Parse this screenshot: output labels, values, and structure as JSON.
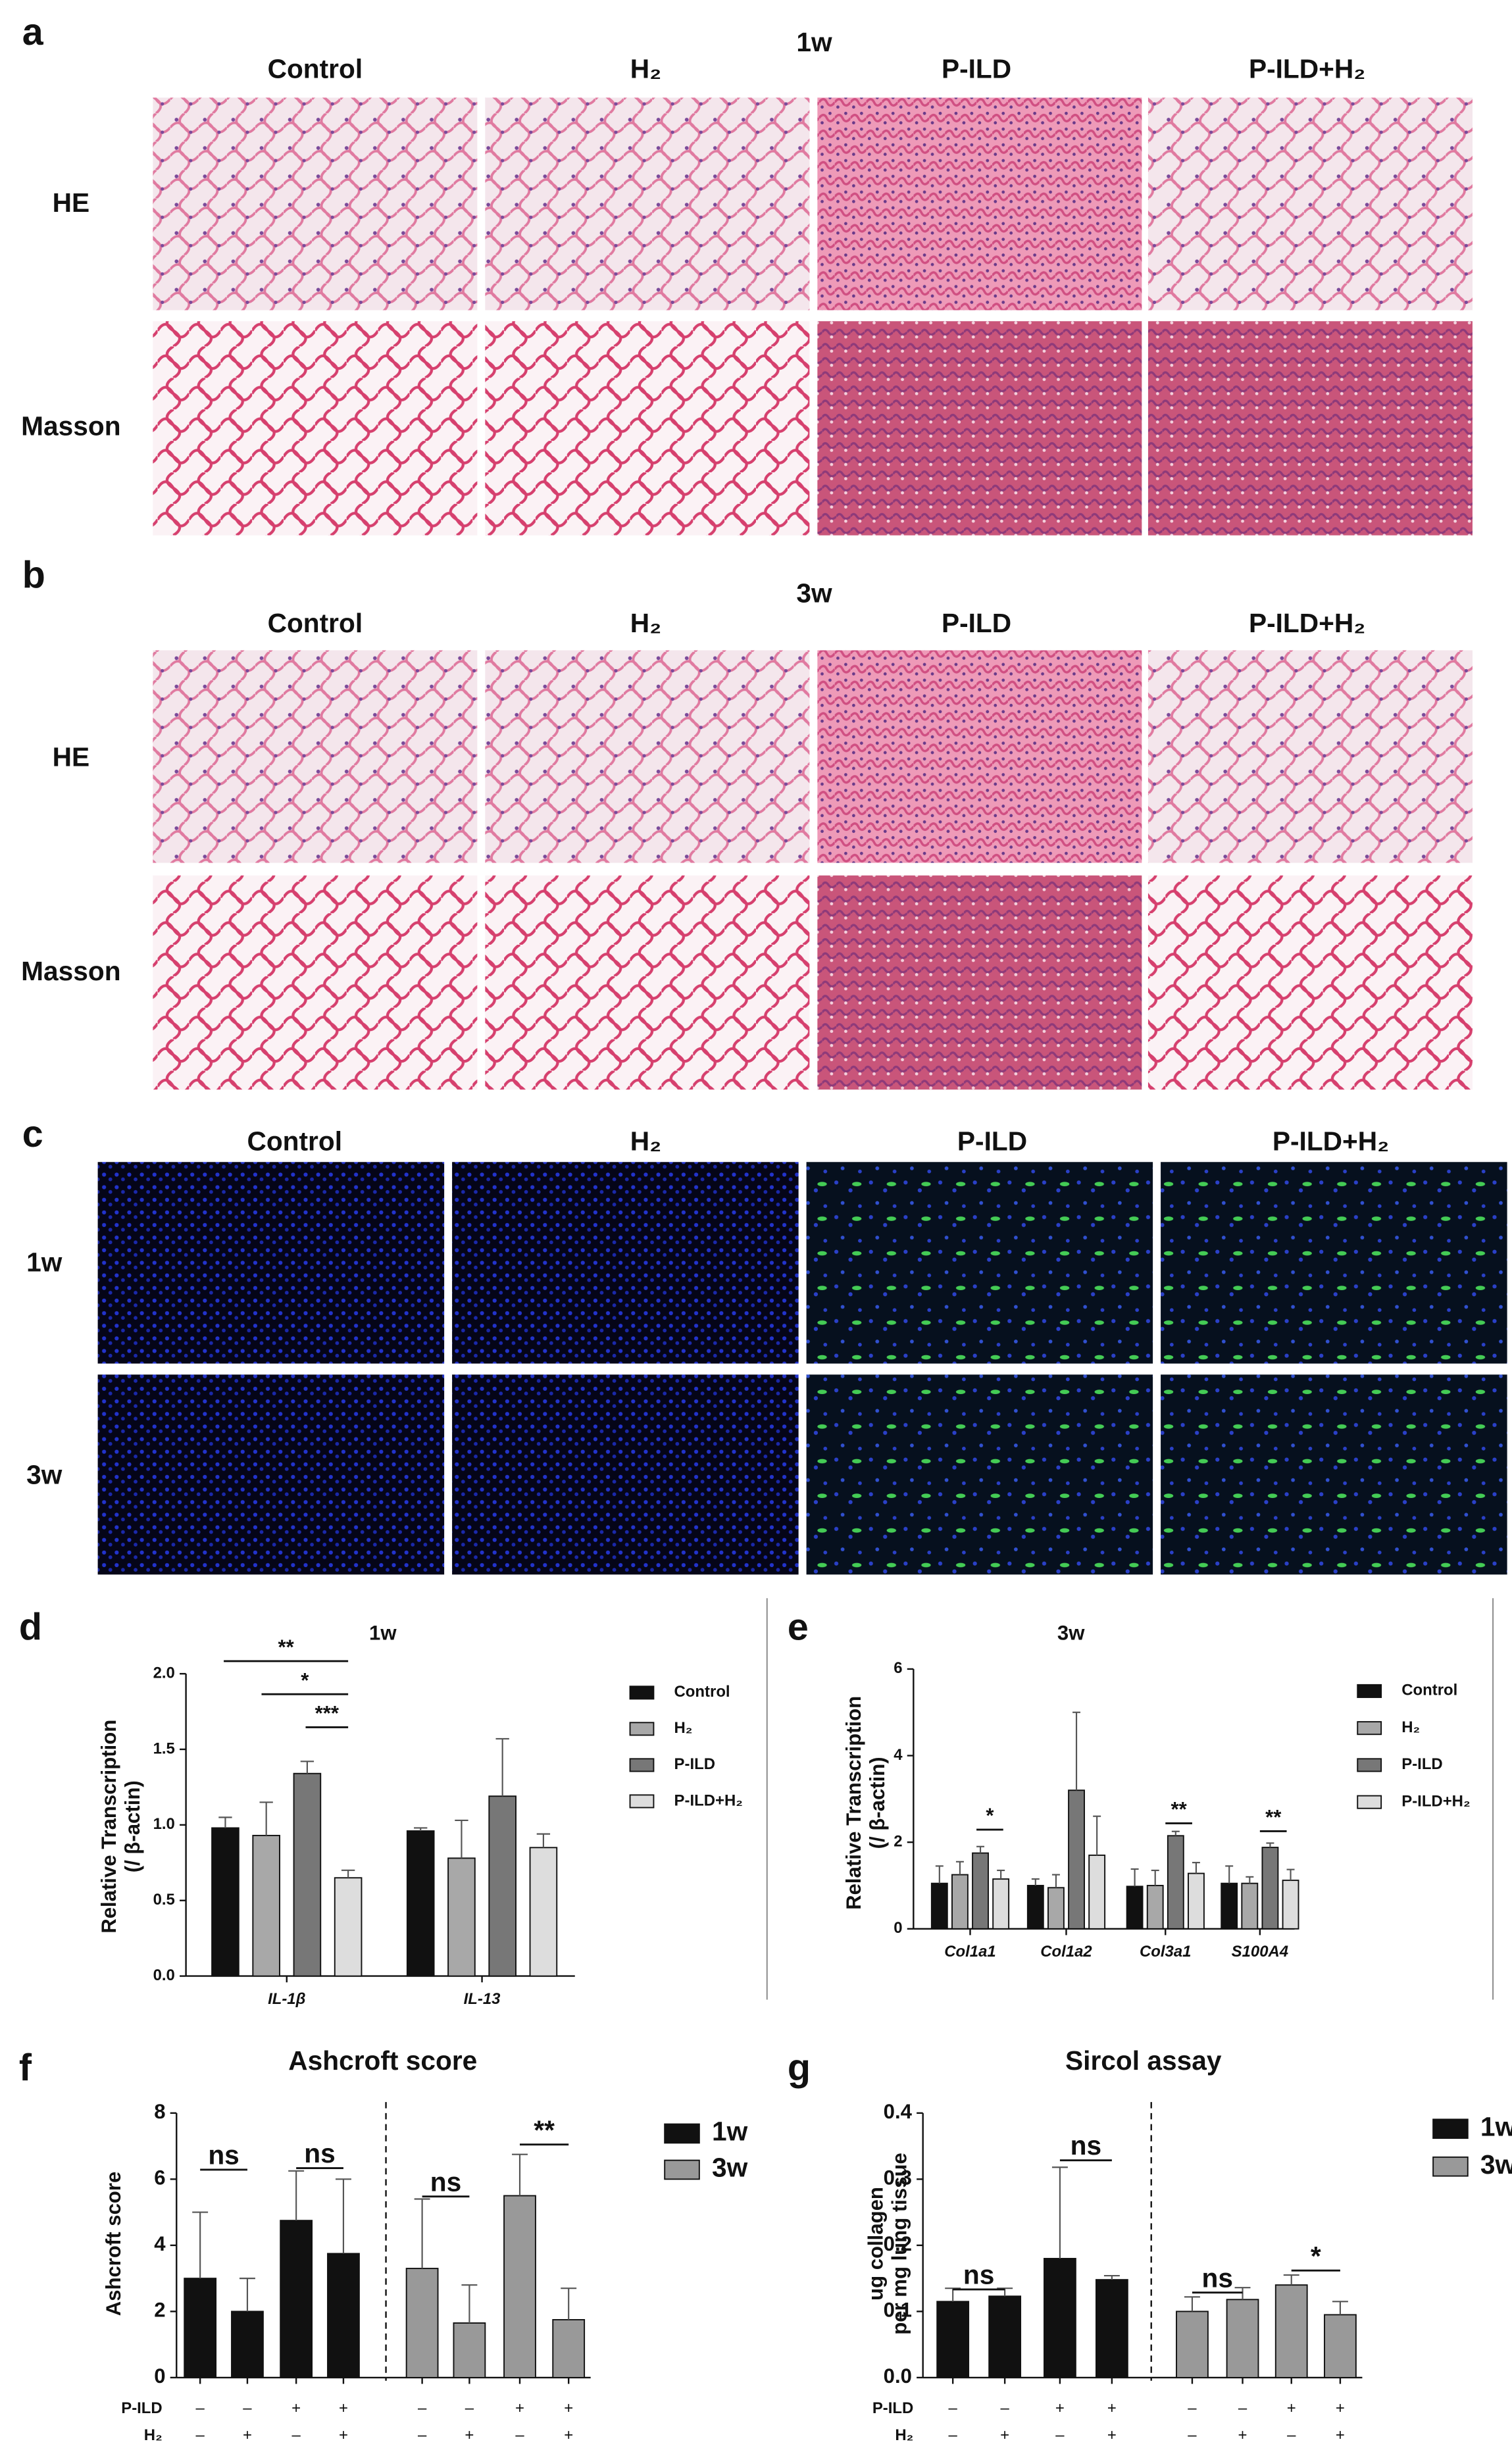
{
  "figure": {
    "panels": [
      {
        "label": "a",
        "title": "1w",
        "columns": [
          "Control",
          "H₂",
          "P-ILD",
          "P-ILD+H₂"
        ],
        "rows": [
          "HE",
          "Masson"
        ]
      },
      {
        "label": "b",
        "title": "3w",
        "columns": [
          "Control",
          "H₂",
          "P-ILD",
          "P-ILD+H₂"
        ],
        "rows": [
          "HE",
          "Masson"
        ]
      },
      {
        "label": "c",
        "columns": [
          "Control",
          "H₂",
          "P-ILD",
          "P-ILD+H₂"
        ],
        "rows": [
          "1w",
          "3w"
        ]
      }
    ]
  },
  "chart_data": [
    {
      "type": "bar",
      "label": "d",
      "title": "1w",
      "ylabel": [
        "Relative Transcription",
        "(/ β-actin)"
      ],
      "categories": [
        "IL-1β",
        "IL-13"
      ],
      "series": [
        {
          "name": "Control",
          "color": "#111111",
          "values": [
            0.98,
            0.96
          ],
          "errors": [
            0.07,
            0.02
          ]
        },
        {
          "name": "H₂",
          "color": "#a8a8a8",
          "values": [
            0.93,
            0.78
          ],
          "errors": [
            0.22,
            0.25
          ]
        },
        {
          "name": "P-ILD",
          "color": "#777777",
          "values": [
            1.34,
            1.19
          ],
          "errors": [
            0.08,
            0.38
          ]
        },
        {
          "name": "P-ILD+H₂",
          "color": "#dddddd",
          "values": [
            0.65,
            0.85
          ],
          "errors": [
            0.05,
            0.09
          ]
        }
      ],
      "ylim": [
        0,
        2
      ],
      "yticks": [
        {
          "value": 0,
          "label": "0.0"
        },
        0.5,
        {
          "value": 1,
          "label": "1.0"
        },
        1.5,
        {
          "value": 2,
          "label": "2.0"
        }
      ],
      "annotations": [
        "**",
        "*",
        "***"
      ]
    },
    {
      "type": "bar",
      "label": "e",
      "title": "3w",
      "ylabel": [
        "Relative Transcription",
        "(/ β-actin)"
      ],
      "categories": [
        "Col1a1",
        "Col1a2",
        "Col3a1",
        "S100A4"
      ],
      "series": [
        {
          "name": "Control",
          "color": "#111111",
          "values": [
            1.05,
            1.0,
            0.98,
            1.05
          ],
          "errors": [
            0.4,
            0.15,
            0.4,
            0.4
          ]
        },
        {
          "name": "H₂",
          "color": "#a8a8a8",
          "values": [
            1.25,
            0.95,
            1.0,
            1.05
          ],
          "errors": [
            0.3,
            0.3,
            0.35,
            0.15
          ]
        },
        {
          "name": "P-ILD",
          "color": "#777777",
          "values": [
            1.75,
            3.2,
            2.15,
            1.88
          ],
          "errors": [
            0.15,
            1.8,
            0.1,
            0.1
          ]
        },
        {
          "name": "P-ILD+H₂",
          "color": "#dddddd",
          "values": [
            1.15,
            1.7,
            1.28,
            1.12
          ],
          "errors": [
            0.2,
            0.9,
            0.25,
            0.25
          ]
        }
      ],
      "ylim": [
        0,
        6
      ],
      "yticks": [
        0,
        2,
        4,
        6
      ],
      "annotations": [
        "*",
        "**",
        "**"
      ]
    },
    {
      "type": "bar",
      "label": "f",
      "title": "Ashcroft score",
      "ylabel": [
        "Ashcroft score"
      ],
      "conditions": [
        {
          "name": "P-ILD",
          "marks": [
            "–",
            "–",
            "+",
            "+",
            "–",
            "–",
            "+",
            "+"
          ]
        },
        {
          "name": "H₂",
          "marks": [
            "–",
            "+",
            "–",
            "+",
            "–",
            "+",
            "–",
            "+"
          ]
        }
      ],
      "series": [
        {
          "name": "1w",
          "color": "#111111",
          "values": [
            3.0,
            2.0,
            4.75,
            3.75,
            null,
            null,
            null,
            null
          ],
          "errors": [
            2.0,
            1.0,
            1.5,
            2.25,
            null,
            null,
            null,
            null
          ]
        },
        {
          "name": "3w",
          "color": "#999999",
          "values": [
            null,
            null,
            null,
            null,
            3.3,
            1.65,
            5.5,
            1.75
          ],
          "errors": [
            null,
            null,
            null,
            null,
            2.1,
            1.15,
            1.25,
            0.95
          ]
        }
      ],
      "ylim": [
        0,
        8
      ],
      "yticks": [
        0,
        2,
        4,
        6,
        8
      ],
      "annotations": [
        "ns",
        "ns",
        "ns",
        "**"
      ]
    },
    {
      "type": "bar",
      "label": "g",
      "title": "Sircol assay",
      "ylabel": [
        "ug collagen",
        "per mg lung tissue"
      ],
      "conditions": [
        {
          "name": "P-ILD",
          "marks": [
            "–",
            "–",
            "+",
            "+",
            "–",
            "–",
            "+",
            "+"
          ]
        },
        {
          "name": "H₂",
          "marks": [
            "–",
            "+",
            "–",
            "+",
            "–",
            "+",
            "–",
            "+"
          ]
        }
      ],
      "series": [
        {
          "name": "1w",
          "color": "#111111",
          "values": [
            0.115,
            0.123,
            0.18,
            0.148,
            null,
            null,
            null,
            null
          ],
          "errors": [
            0.02,
            0.012,
            0.138,
            0.006,
            null,
            null,
            null,
            null
          ]
        },
        {
          "name": "3w",
          "color": "#999999",
          "values": [
            null,
            null,
            null,
            null,
            0.1,
            0.118,
            0.14,
            0.095
          ],
          "errors": [
            null,
            null,
            null,
            null,
            0.022,
            0.018,
            0.015,
            0.02
          ]
        }
      ],
      "ylim": [
        0,
        0.4
      ],
      "yticks": [
        {
          "value": 0,
          "label": "0.0"
        },
        0.1,
        0.2,
        0.3,
        0.4
      ],
      "annotations": [
        "ns",
        "ns",
        "ns",
        "*"
      ]
    }
  ]
}
